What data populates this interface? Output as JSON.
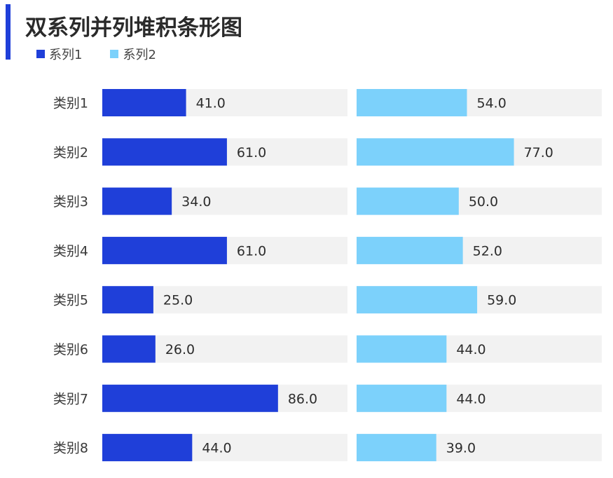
{
  "chart_data": {
    "type": "bar",
    "orientation": "horizontal",
    "title": "双系列并列堆积条形图",
    "categories": [
      "类别1",
      "类别2",
      "类别3",
      "类别4",
      "类别5",
      "类别6",
      "类别7",
      "类别8"
    ],
    "series": [
      {
        "name": "系列1",
        "color": "#1F3FD9",
        "values": [
          41.0,
          61.0,
          34.0,
          61.0,
          25.0,
          26.0,
          86.0,
          44.0
        ],
        "labels": [
          "41.0",
          "61.0",
          "34.0",
          "61.0",
          "25.0",
          "26.0",
          "86.0",
          "44.0"
        ]
      },
      {
        "name": "系列2",
        "color": "#7CD1FB",
        "values": [
          54.0,
          77.0,
          50.0,
          52.0,
          59.0,
          44.0,
          44.0,
          39.0
        ],
        "labels": [
          "54.0",
          "77.0",
          "50.0",
          "52.0",
          "59.0",
          "44.0",
          "44.0",
          "39.0"
        ]
      }
    ],
    "xlim": [
      0,
      120
    ],
    "background_track_color": "#F2F2F2",
    "grid": false,
    "legend_position": "top-left"
  }
}
